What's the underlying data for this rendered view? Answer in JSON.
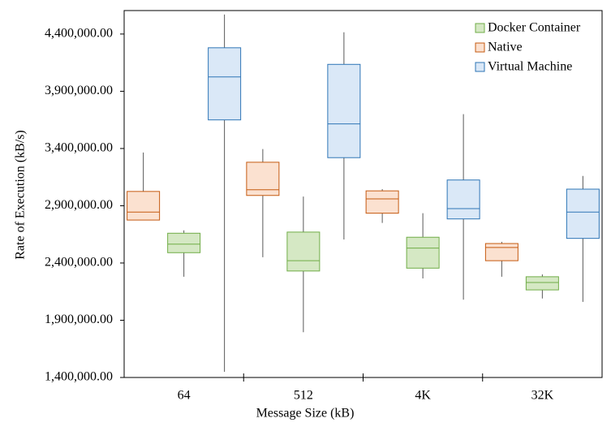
{
  "chart_data": {
    "type": "box",
    "x_label": "Message Size (kB)",
    "y_label": "Rate of Execution (kB/s)",
    "categories": [
      "64",
      "512",
      "4K",
      "32K"
    ],
    "ylim": [
      1400000,
      4605000
    ],
    "yticks": [
      {
        "value": 1400000,
        "label": "1,400,000.00"
      },
      {
        "value": 1900000,
        "label": "1,900,000.00"
      },
      {
        "value": 2400000,
        "label": "2,400,000.00"
      },
      {
        "value": 2900000,
        "label": "2,900,000.00"
      },
      {
        "value": 3400000,
        "label": "3,400,000.00"
      },
      {
        "value": 3900000,
        "label": "3,900,000.00"
      },
      {
        "value": 4400000,
        "label": "4,400,000.00"
      }
    ],
    "legend": "top-right",
    "series": [
      {
        "name": "Docker Container",
        "color": "#d5e8c4",
        "stroke": "#70ad47",
        "min": [
          2280000,
          1795000,
          2265000,
          2090000
        ],
        "q1": [
          2490000,
          2330000,
          2355000,
          2165000
        ],
        "median": [
          2565000,
          2420000,
          2530000,
          2230000
        ],
        "q3": [
          2660000,
          2670000,
          2625000,
          2280000
        ],
        "max": [
          2685000,
          2980000,
          2835000,
          2300000
        ]
      },
      {
        "name": "Native",
        "color": "#fbe1d0",
        "stroke": "#c55a11",
        "min": [
          2775000,
          2450000,
          2750000,
          2280000
        ],
        "q1": [
          2775000,
          2990000,
          2835000,
          2420000
        ],
        "median": [
          2845000,
          3040000,
          2960000,
          2535000
        ],
        "q3": [
          3025000,
          3280000,
          3030000,
          2570000
        ],
        "max": [
          3365000,
          3395000,
          3045000,
          2585000
        ]
      },
      {
        "name": "Virtual Machine",
        "color": "#dae8f7",
        "stroke": "#2e75b6",
        "min": [
          1450000,
          2605000,
          2080000,
          2060000
        ],
        "q1": [
          3650000,
          3320000,
          2785000,
          2615000
        ],
        "median": [
          4025000,
          3615000,
          2875000,
          2845000
        ],
        "q3": [
          4280000,
          4135000,
          3125000,
          3045000
        ],
        "max": [
          4570000,
          4415000,
          3700000,
          3160000
        ]
      }
    ]
  }
}
